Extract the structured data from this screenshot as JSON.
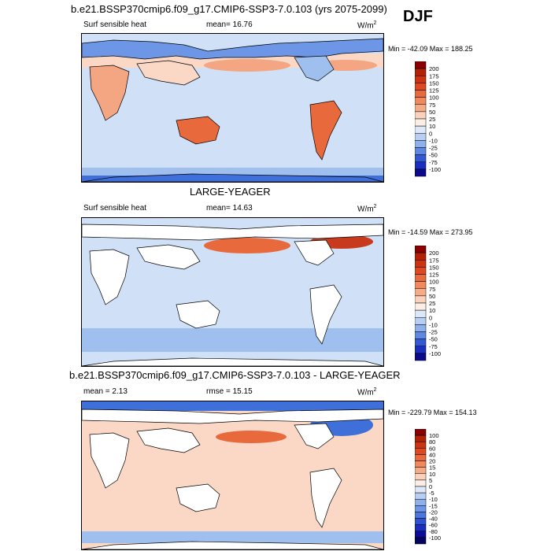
{
  "season": "DJF",
  "colors": {
    "land": "#ffffff",
    "coast": "#000000",
    "ocean_light": "#cfe0f7",
    "ocean_mid": "#9fbfef",
    "ocean_blue": "#6d96e6",
    "ocean_deep": "#3f6fd9",
    "warm_light": "#fbd8c6",
    "warm_mid": "#f4a582",
    "warm_orange": "#e86a3c",
    "warm_red": "#c83a1e",
    "warm_dark": "#8b0000"
  },
  "panels": [
    {
      "title": "b.e21.BSSP370cmip6.f09_g17.CMIP6-SSP3-7.0.103 (yrs 2075-2099)",
      "left_label": "Surf sensible heat",
      "center_label": "mean=  16.76",
      "units": "W/m",
      "units_sup": "2",
      "minmax": "Min = -42.09 Max = 188.25",
      "colorbar_levels": [
        "200",
        "175",
        "150",
        "125",
        "100",
        "75",
        "50",
        "25",
        "10",
        "0",
        "-10",
        "-25",
        "-50",
        "-75",
        "-100"
      ],
      "colorbar_colors": [
        "#8b0000",
        "#b22205",
        "#cc3311",
        "#dd4a22",
        "#e96a3c",
        "#f08a5e",
        "#f5ab86",
        "#fad2bc",
        "#fbeee6",
        "#dce8f8",
        "#b8cff3",
        "#8eb0ec",
        "#5f88e3",
        "#3258d6",
        "#1a2fbf",
        "#0a0a8a"
      ]
    },
    {
      "title": "LARGE-YEAGER",
      "left_label": "Surf sensible heat",
      "center_label": "mean=  14.63",
      "units": "W/m",
      "units_sup": "2",
      "minmax": "Min = -14.59 Max = 273.95",
      "colorbar_levels": [
        "200",
        "175",
        "150",
        "125",
        "100",
        "75",
        "50",
        "25",
        "10",
        "0",
        "-10",
        "-25",
        "-50",
        "-75",
        "-100"
      ],
      "colorbar_colors": [
        "#8b0000",
        "#b22205",
        "#cc3311",
        "#dd4a22",
        "#e96a3c",
        "#f08a5e",
        "#f5ab86",
        "#fad2bc",
        "#fbeee6",
        "#dce8f8",
        "#b8cff3",
        "#8eb0ec",
        "#5f88e3",
        "#3258d6",
        "#1a2fbf",
        "#0a0a8a"
      ]
    },
    {
      "title": "b.e21.BSSP370cmip6.f09_g17.CMIP6-SSP3-7.0.103 - LARGE-YEAGER",
      "left_label": "mean =   2.13",
      "center_label": "rmse =  15.15",
      "units": "W/m",
      "units_sup": "2",
      "minmax": "Min = -229.79 Max = 154.13",
      "colorbar_levels": [
        "100",
        "80",
        "60",
        "40",
        "20",
        "15",
        "10",
        "5",
        "0",
        "-5",
        "-10",
        "-15",
        "-20",
        "-40",
        "-60",
        "-80",
        "-100"
      ],
      "colorbar_colors": [
        "#8b0000",
        "#b22205",
        "#cc3311",
        "#dd4a22",
        "#e96a3c",
        "#f08a5e",
        "#f5ab86",
        "#fad2bc",
        "#fbeee6",
        "#dce8f8",
        "#b8cff3",
        "#8eb0ec",
        "#6d96e6",
        "#4a76dd",
        "#2f52d2",
        "#1a2fbf",
        "#0c0c9a",
        "#050560"
      ]
    }
  ],
  "chart_data": [
    {
      "type": "heatmap",
      "title": "b.e21.BSSP370cmip6.f09_g17.CMIP6-SSP3-7.0.103 (yrs 2075-2099)",
      "variable": "Surf sensible heat",
      "units": "W/m2",
      "mean": 16.76,
      "min": -42.09,
      "max": 188.25,
      "levels": [
        -100,
        -75,
        -50,
        -25,
        -10,
        0,
        10,
        25,
        50,
        75,
        100,
        125,
        150,
        175,
        200
      ]
    },
    {
      "type": "heatmap",
      "title": "LARGE-YEAGER",
      "variable": "Surf sensible heat",
      "units": "W/m2",
      "mean": 14.63,
      "min": -14.59,
      "max": 273.95,
      "levels": [
        -100,
        -75,
        -50,
        -25,
        -10,
        0,
        10,
        25,
        50,
        75,
        100,
        125,
        150,
        175,
        200
      ]
    },
    {
      "type": "heatmap",
      "title": "b.e21.BSSP370cmip6.f09_g17.CMIP6-SSP3-7.0.103 - LARGE-YEAGER",
      "units": "W/m2",
      "mean": 2.13,
      "rmse": 15.15,
      "min": -229.79,
      "max": 154.13,
      "levels": [
        -100,
        -80,
        -60,
        -40,
        -20,
        -15,
        -10,
        -5,
        0,
        5,
        10,
        15,
        20,
        40,
        60,
        80,
        100
      ]
    }
  ]
}
